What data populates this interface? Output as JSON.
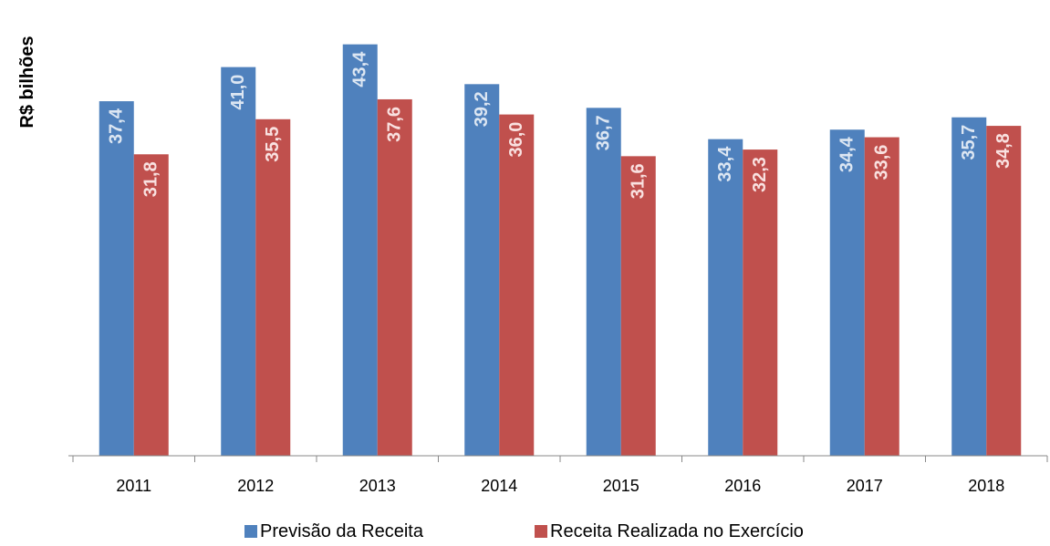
{
  "chart_data": {
    "type": "bar",
    "y_label": "R$ bilhões",
    "categories": [
      "2011",
      "2012",
      "2013",
      "2014",
      "2015",
      "2016",
      "2017",
      "2018"
    ],
    "series": [
      {
        "name": "Previsão da Receita",
        "color": "#4f81bd",
        "values": [
          37.4,
          41.0,
          43.4,
          39.2,
          36.7,
          33.4,
          34.4,
          35.7
        ],
        "value_labels": [
          "37,4",
          "41,0",
          "43,4",
          "39,2",
          "36,7",
          "33,4",
          "34,4",
          "35,7"
        ]
      },
      {
        "name": "Receita Realizada no Exercício",
        "color": "#c0504d",
        "values": [
          31.8,
          35.5,
          37.6,
          36.0,
          31.6,
          32.3,
          33.6,
          34.8
        ],
        "value_labels": [
          "31,8",
          "35,5",
          "37,6",
          "36,0",
          "31,6",
          "32,3",
          "33,6",
          "34,8"
        ]
      }
    ],
    "ylim": [
      0,
      45
    ],
    "legend": "bottom"
  }
}
